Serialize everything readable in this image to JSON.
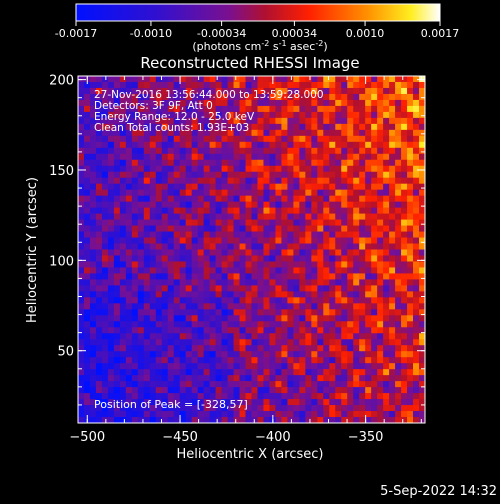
{
  "chart_data": {
    "type": "heatmap",
    "title": "Reconstructed RHESSI Image",
    "xlabel": "Heliocentric X (arcsec)",
    "ylabel": "Heliocentric Y (arcsec)",
    "xlim": [
      -505,
      -318
    ],
    "ylim": [
      10,
      202
    ],
    "x_ticks": [
      -500,
      -450,
      -400,
      -350
    ],
    "y_ticks": [
      50,
      100,
      150,
      200
    ],
    "annotations": [
      "27-Nov-2016 13:56:44.000 to 13:59:28.000",
      "Detectors: 3F 9F, Att 0",
      "Energy Range: 12.0 - 25.0 keV",
      "Clean     Total counts: 1.93E+03"
    ],
    "peak_label": "Position of Peak = [-328,57]",
    "peak": [
      -328,
      57
    ],
    "colorbar": {
      "range": [
        -0.0017,
        0.0017
      ],
      "ticks": [
        "-0.0017",
        "-0.0010",
        "-0.00034",
        "0.00034",
        "0.0010",
        "0.0017"
      ],
      "unit_text": "(photons cm",
      "unit_sup1": "-2",
      "unit_mid": " s",
      "unit_sup2": "-1",
      "unit_end": " asec",
      "unit_sup3": "-2",
      "unit_close": ")"
    },
    "colors": {
      "neg_low": "#0000ff",
      "zero": "#800080",
      "pos_mid": "#ff2000",
      "pos_high": "#ffff00",
      "max": "#ffffff"
    }
  },
  "footer_date": "5-Sep-2022 14:32"
}
